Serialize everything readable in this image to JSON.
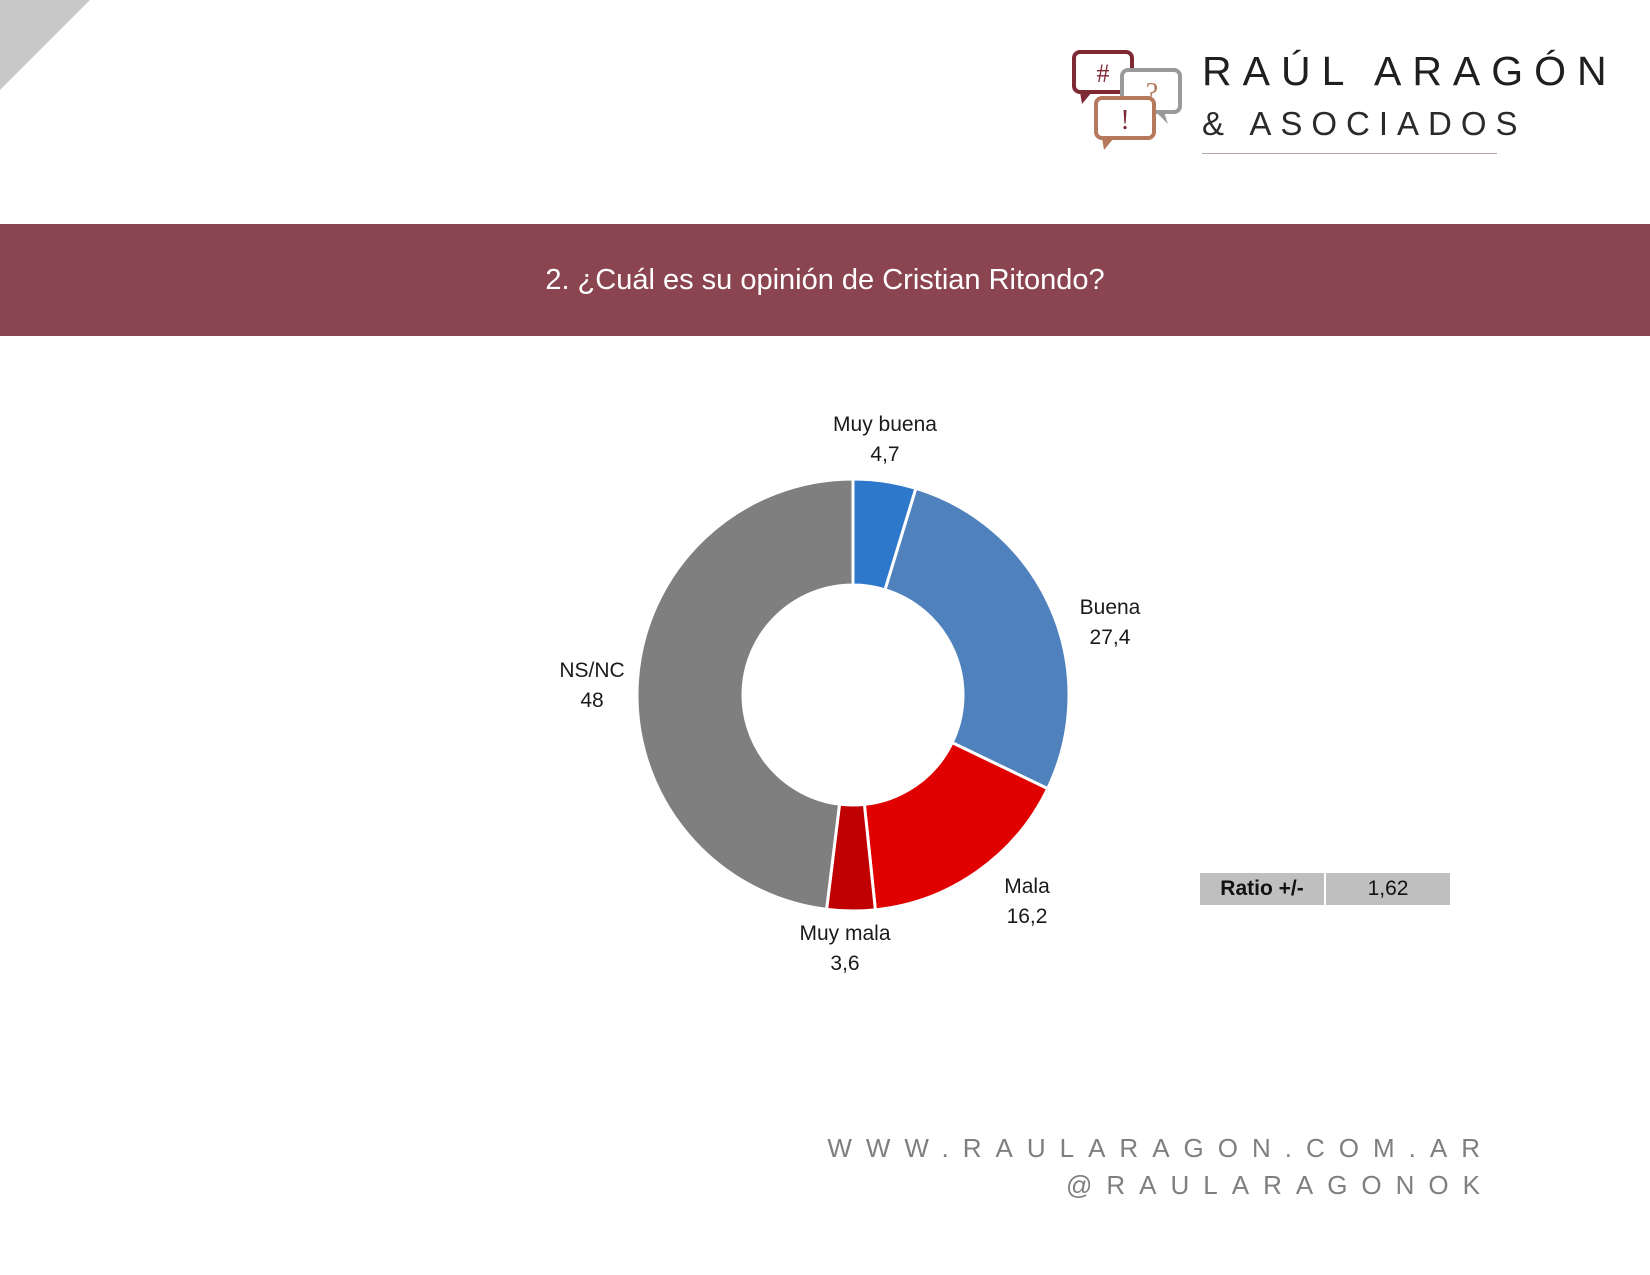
{
  "brand": {
    "name": "RAÚL ARAGÓN",
    "subtitle": "& ASOCIADOS",
    "icons": [
      "hash-bubble-icon",
      "question-bubble-icon",
      "exclamation-bubble-icon"
    ],
    "icon_glyphs": {
      "hash": "#",
      "question": "?",
      "exclaim": "!"
    }
  },
  "header": {
    "title": "2. ¿Cuál es su opinión de Cristian Ritondo?",
    "band_color": "#8b4551"
  },
  "chart_data": {
    "type": "pie",
    "variant": "donut",
    "categories": [
      "Muy buena",
      "Buena",
      "Mala",
      "Muy mala",
      "NS/NC"
    ],
    "values": [
      4.7,
      27.4,
      16.2,
      3.6,
      48
    ],
    "value_labels": [
      "4,7",
      "27,4",
      "16,2",
      "3,6",
      "48"
    ],
    "colors": [
      "#2e78cc",
      "#4f81bd",
      "#e00000",
      "#c00000",
      "#7f7f7f"
    ],
    "legend": "none"
  },
  "ratio": {
    "label": "Ratio +/-",
    "value": "1,62"
  },
  "footer": {
    "website": "WWW.RAULARAGON.COM.AR",
    "handle": "@RAULARAGONOK"
  }
}
